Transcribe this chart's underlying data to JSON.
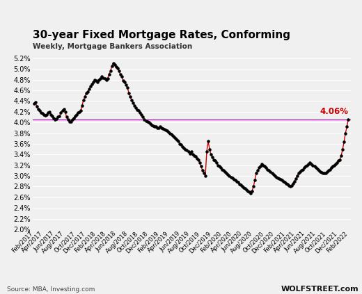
{
  "title": "30-year Fixed Mortgage Rates, Conforming",
  "subtitle": "Weekly, Mortgage Bankers Association",
  "source": "Source: MBA, Investing.com",
  "watermark": "WOLFSTREET.com",
  "reference_rate": 4.06,
  "reference_label": "4.06%",
  "ylim": [
    2.0,
    5.3
  ],
  "yticks": [
    2.0,
    2.2,
    2.4,
    2.6,
    2.8,
    3.0,
    3.2,
    3.4,
    3.6,
    3.8,
    4.0,
    4.2,
    4.4,
    4.6,
    4.8,
    5.0,
    5.2
  ],
  "line_color": "#cc0000",
  "dot_color": "#000000",
  "reference_line_color": "#aa00aa",
  "reference_text_color": "#cc0000",
  "bg_color": "#f0f0f0",
  "grid_color": "#ffffff",
  "values": [
    4.35,
    4.38,
    4.3,
    4.25,
    4.22,
    4.18,
    4.17,
    4.15,
    4.13,
    4.15,
    4.18,
    4.2,
    4.15,
    4.12,
    4.08,
    4.05,
    4.07,
    4.1,
    4.12,
    4.18,
    4.22,
    4.25,
    4.2,
    4.1,
    4.05,
    4.02,
    4.02,
    4.05,
    4.08,
    4.12,
    4.15,
    4.18,
    4.2,
    4.22,
    4.32,
    4.42,
    4.48,
    4.55,
    4.58,
    4.62,
    4.68,
    4.72,
    4.76,
    4.8,
    4.78,
    4.76,
    4.8,
    4.82,
    4.86,
    4.84,
    4.82,
    4.8,
    4.82,
    4.9,
    4.96,
    5.05,
    5.11,
    5.08,
    5.04,
    5.01,
    4.96,
    4.9,
    4.86,
    4.78,
    4.75,
    4.7,
    4.65,
    4.55,
    4.48,
    4.42,
    4.37,
    4.32,
    4.28,
    4.24,
    4.22,
    4.18,
    4.14,
    4.1,
    4.06,
    4.03,
    4.02,
    4.0,
    3.97,
    3.95,
    3.94,
    3.93,
    3.92,
    3.9,
    3.9,
    3.92,
    3.9,
    3.88,
    3.87,
    3.86,
    3.84,
    3.82,
    3.8,
    3.78,
    3.75,
    3.73,
    3.7,
    3.68,
    3.65,
    3.6,
    3.58,
    3.55,
    3.52,
    3.5,
    3.48,
    3.45,
    3.42,
    3.45,
    3.4,
    3.38,
    3.36,
    3.33,
    3.3,
    3.25,
    3.18,
    3.1,
    3.05,
    3.0,
    3.45,
    3.65,
    3.5,
    3.4,
    3.35,
    3.3,
    3.28,
    3.25,
    3.2,
    3.18,
    3.15,
    3.12,
    3.1,
    3.08,
    3.05,
    3.03,
    3.0,
    2.98,
    2.96,
    2.94,
    2.92,
    2.9,
    2.88,
    2.85,
    2.83,
    2.8,
    2.78,
    2.76,
    2.74,
    2.72,
    2.7,
    2.68,
    2.72,
    2.8,
    2.92,
    3.05,
    3.1,
    3.15,
    3.18,
    3.22,
    3.2,
    3.18,
    3.15,
    3.12,
    3.1,
    3.08,
    3.05,
    3.02,
    3.0,
    2.98,
    2.96,
    2.95,
    2.94,
    2.92,
    2.9,
    2.88,
    2.86,
    2.84,
    2.82,
    2.8,
    2.82,
    2.86,
    2.9,
    2.95,
    3.0,
    3.05,
    3.08,
    3.1,
    3.12,
    3.15,
    3.18,
    3.2,
    3.22,
    3.25,
    3.22,
    3.2,
    3.18,
    3.15,
    3.13,
    3.1,
    3.08,
    3.06,
    3.05,
    3.05,
    3.05,
    3.08,
    3.1,
    3.12,
    3.15,
    3.18,
    3.2,
    3.22,
    3.25,
    3.28,
    3.3,
    3.38,
    3.5,
    3.64,
    3.8,
    3.92,
    4.06
  ],
  "xtick_labels": [
    "Feb/2017",
    "Apr/2017",
    "Jun/2017",
    "Aug/2017",
    "Oct/2017",
    "Dec/2017",
    "Feb/2018",
    "Apr/2018",
    "Jun/2018",
    "Aug/2018",
    "Oct/2018",
    "Dec/2018",
    "Feb/2019",
    "Apr/2019",
    "Jun/2019",
    "Aug/2019",
    "Oct/2019",
    "Dec/2019",
    "Feb/2020",
    "Apr/2020",
    "Jun/2020",
    "Aug/2020",
    "Oct/2020",
    "Dec/2020",
    "Feb/2021",
    "Apr/2021",
    "Jun/2021",
    "Aug/2021",
    "Oct/2021",
    "Dec/2021",
    "Feb/2022"
  ]
}
